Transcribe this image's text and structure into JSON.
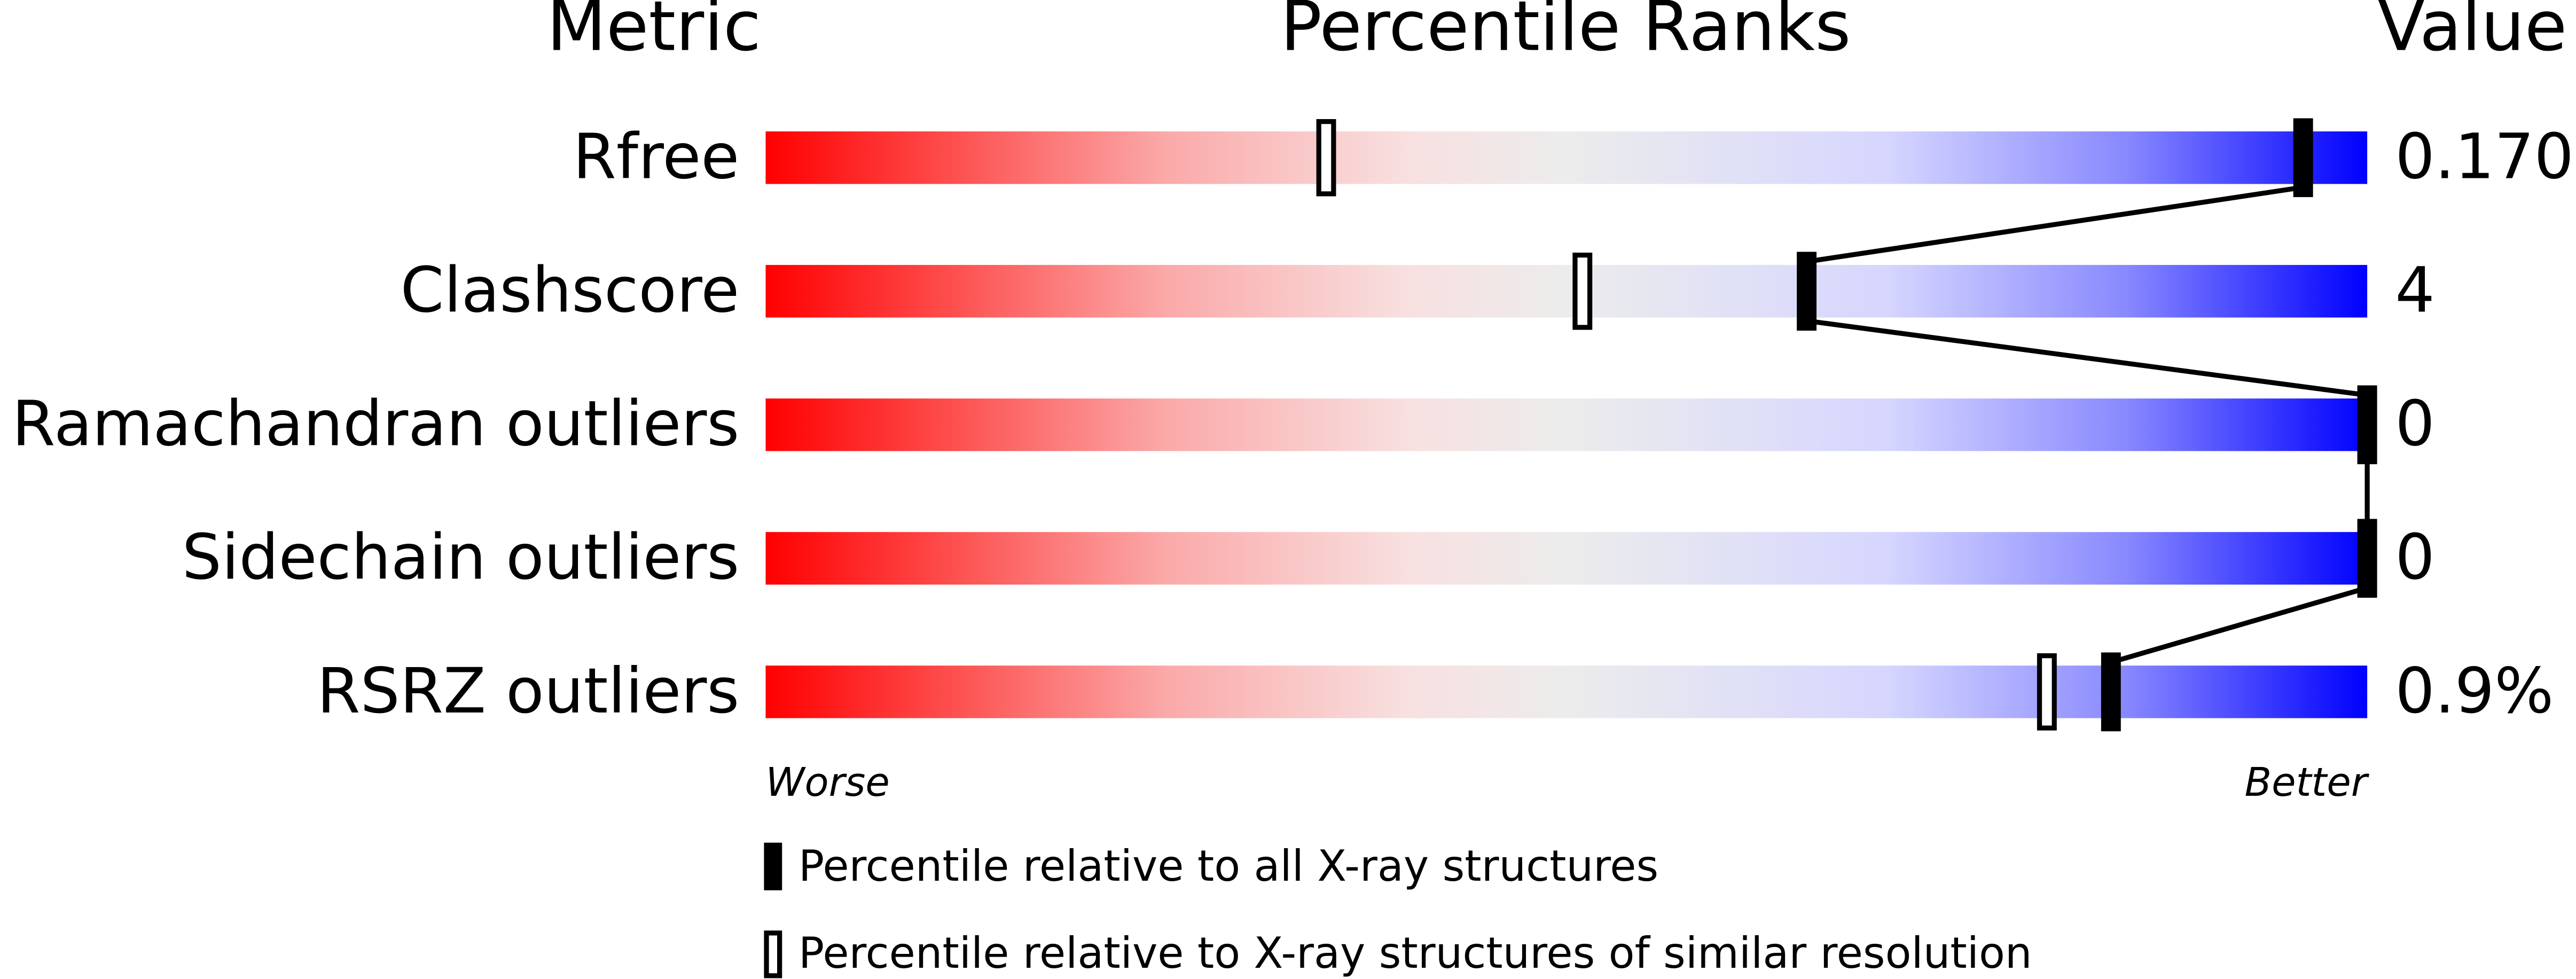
{
  "chart_data": {
    "type": "percentile",
    "headers": {
      "metric": "Metric",
      "percentile": "Percentile Ranks",
      "value": "Value"
    },
    "categories": [
      "Rfree",
      "Clashscore",
      "Ramachandran outliers",
      "Sidechain outliers",
      "RSRZ outliers"
    ],
    "metric_values": [
      "0.170",
      "4",
      "0",
      "0",
      "0.9%"
    ],
    "series": [
      {
        "name": "Percentile relative to all X-ray structures",
        "values": [
          96,
          65,
          100,
          100,
          84
        ]
      },
      {
        "name": "Percentile relative to X-ray structures of similar resolution",
        "values": [
          35,
          51,
          100,
          100,
          80
        ]
      }
    ],
    "xlim": [
      0,
      100
    ],
    "x_labels": {
      "low": "Worse",
      "high": "Better"
    }
  }
}
